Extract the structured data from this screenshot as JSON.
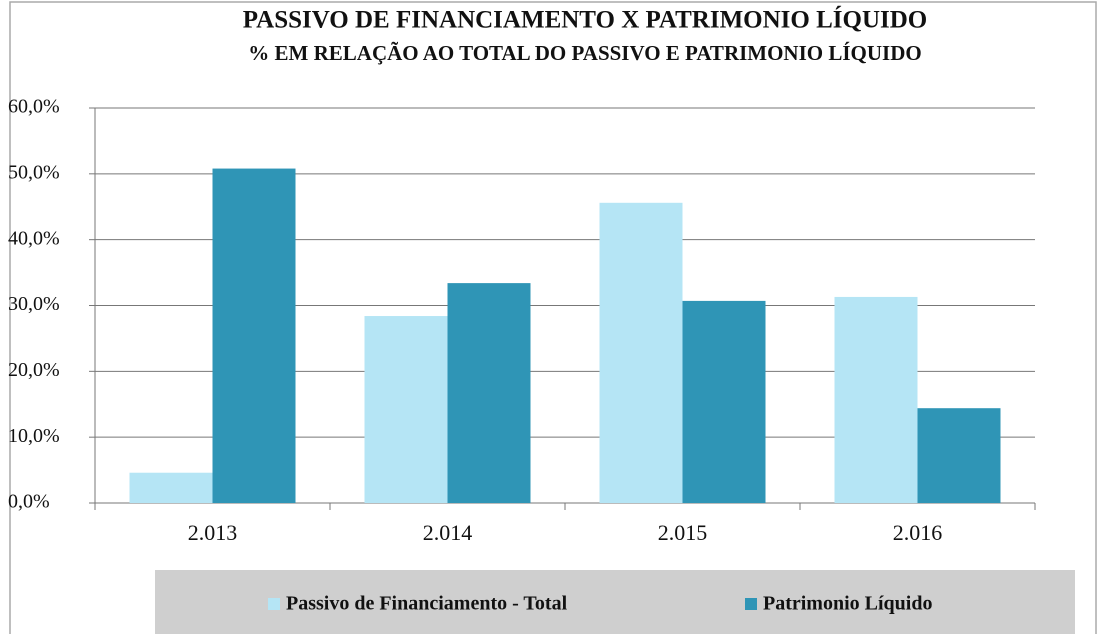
{
  "chart_data": {
    "type": "bar",
    "title": "PASSIVO DE FINANCIAMENTO X PATRIMONIO LÍQUIDO",
    "subtitle": "% EM RELAÇÃO AO TOTAL DO PASSIVO E PATRIMONIO LÍQUIDO",
    "categories": [
      "2.013",
      "2.014",
      "2.015",
      "2.016"
    ],
    "series": [
      {
        "name": "Passivo de Financiamento - Total",
        "color": "#b5e5f5",
        "values": [
          4.6,
          28.4,
          45.6,
          31.3
        ]
      },
      {
        "name": "Patrimonio Líquido",
        "color": "#2f95b6",
        "values": [
          50.8,
          33.4,
          30.7,
          14.4
        ]
      }
    ],
    "ylim": [
      0,
      60
    ],
    "yticks": [
      {
        "value": 0,
        "label": "0,0%"
      },
      {
        "value": 10,
        "label": "10,0%"
      },
      {
        "value": 20,
        "label": "20,0%"
      },
      {
        "value": 30,
        "label": "30,0%"
      },
      {
        "value": 40,
        "label": "40,0%"
      },
      {
        "value": 50,
        "label": "50,0%"
      },
      {
        "value": 60,
        "label": "60,0%"
      }
    ],
    "grid": true,
    "legend": "bottom"
  }
}
